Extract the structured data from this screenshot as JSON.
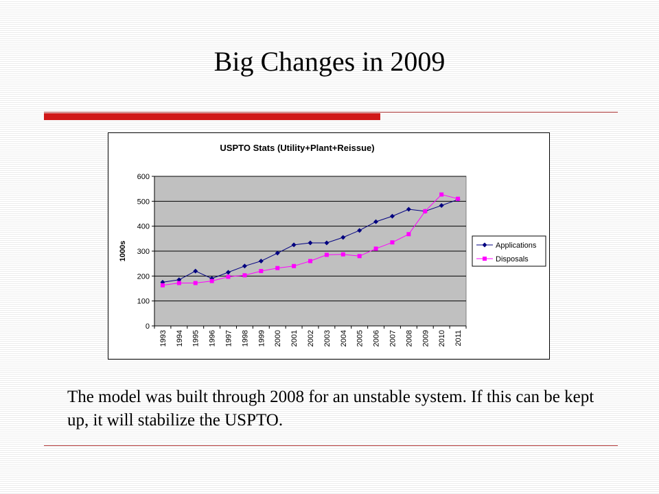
{
  "slide": {
    "title": "Big Changes in 2009",
    "body": "The model was built through 2008 for an unstable system.  If this can be kept up, it will stabilize the USPTO."
  },
  "colors": {
    "accent_red": "#d01818",
    "plot_bg": "#c0c0c0",
    "applications": "#000080",
    "disposals": "#ff00ff"
  },
  "chart_data": {
    "type": "line",
    "title": "USPTO Stats (Utility+Plant+Reissue)",
    "xlabel": "",
    "ylabel": "1000s",
    "categories": [
      "1993",
      "1994",
      "1995",
      "1996",
      "1997",
      "1998",
      "1999",
      "2000",
      "2001",
      "2002",
      "2003",
      "2004",
      "2005",
      "2006",
      "2007",
      "2008",
      "2009",
      "2010",
      "2011"
    ],
    "series": [
      {
        "name": "Applications",
        "color": "#000080",
        "marker": "diamond",
        "values": [
          175,
          185,
          220,
          190,
          215,
          240,
          260,
          292,
          325,
          333,
          333,
          355,
          383,
          418,
          440,
          468,
          460,
          483,
          507
        ]
      },
      {
        "name": "Disposals",
        "color": "#ff00ff",
        "marker": "square",
        "values": [
          163,
          172,
          172,
          180,
          197,
          203,
          220,
          232,
          240,
          260,
          285,
          287,
          280,
          310,
          335,
          368,
          460,
          527,
          510
        ]
      }
    ],
    "ylim": [
      0,
      600
    ],
    "yticks": [
      0,
      100,
      200,
      300,
      400,
      500,
      600
    ],
    "grid": true,
    "legend": "right"
  }
}
